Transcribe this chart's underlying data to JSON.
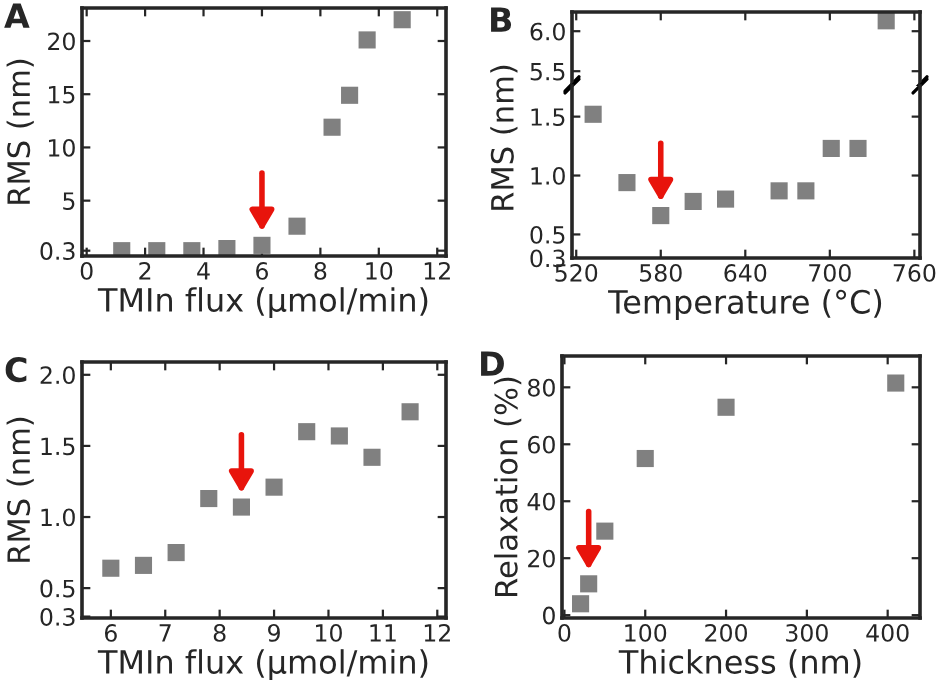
{
  "chart_data": [
    {
      "type": "scatter",
      "xlabel": "TMIn flux (μmol/min)",
      "ylabel": "RMS (nm)",
      "annotations": [
        "A"
      ],
      "marker": "square",
      "grid": false,
      "legend": false,
      "x": [
        1.2,
        2.4,
        3.6,
        4.8,
        6.0,
        7.2,
        8.4,
        9.0,
        9.6,
        10.8
      ],
      "series": [
        {
          "color": "#808080",
          "values": [
            0.3,
            0.3,
            0.3,
            0.5,
            0.8,
            2.6,
            11.9,
            14.9,
            20.1,
            22.0
          ]
        }
      ],
      "xlim": [
        -0.16,
        12.3
      ],
      "xticks": [
        0,
        2,
        4,
        6,
        8,
        10,
        12
      ],
      "ylim": [
        -0.2,
        23.1
      ],
      "yticks": [
        0.3,
        5,
        10,
        15,
        20
      ]
    },
    {
      "type": "scatter",
      "ylabel": "RMS (nm)",
      "annotations": [
        "B"
      ],
      "marker": "square",
      "grid": false,
      "legend": false,
      "tick_labels": "y",
      "x": [
        740
      ],
      "series": [
        {
          "color": "#808080",
          "values": [
            6.13
          ]
        }
      ],
      "xlim": [
        517,
        764
      ],
      "xticks": [
        520,
        580,
        640,
        700,
        760
      ],
      "ylim": [
        5.34,
        6.24
      ],
      "yticks": [
        5.5,
        {
          "value": 6,
          "label": "6.0"
        }
      ]
    },
    {
      "type": "scatter",
      "xlabel": "Temperature (°C)",
      "marker": "square",
      "grid": false,
      "legend": false,
      "x": [
        532,
        556,
        580,
        603,
        626,
        664,
        683,
        701,
        720
      ],
      "series": [
        {
          "color": "#808080",
          "values": [
            1.52,
            0.94,
            0.66,
            0.78,
            0.8,
            0.87,
            0.87,
            1.23,
            1.23
          ]
        }
      ],
      "xlim": [
        517,
        764
      ],
      "xticks": [
        520,
        580,
        640,
        700,
        760
      ],
      "ylim": [
        0.3,
        1.76
      ],
      "yticks": [
        0.3,
        0.5,
        {
          "value": 1,
          "label": "1.0"
        },
        1.5
      ]
    },
    {
      "type": "scatter",
      "xlabel": "TMIn flux (μmol/min)",
      "ylabel": "RMS (nm)",
      "annotations": [
        "C"
      ],
      "marker": "square",
      "grid": false,
      "legend": false,
      "x": [
        6.0,
        6.6,
        7.2,
        7.8,
        8.4,
        9.0,
        9.6,
        10.2,
        10.8,
        11.5
      ],
      "series": [
        {
          "color": "#808080",
          "values": [
            0.64,
            0.66,
            0.75,
            1.13,
            1.07,
            1.21,
            1.6,
            1.57,
            1.42,
            1.74
          ]
        }
      ],
      "xlim": [
        5.47,
        12.16
      ],
      "xticks": [
        6,
        7,
        8,
        9,
        10,
        11,
        12
      ],
      "ylim": [
        0.29,
        2.09
      ],
      "yticks": [
        0.3,
        0.5,
        {
          "value": 1,
          "label": "1.0"
        },
        1.5,
        {
          "value": 2,
          "label": "2.0"
        }
      ]
    },
    {
      "type": "scatter",
      "xlabel": "Thickness (nm)",
      "ylabel": "Relaxation (%)",
      "annotations": [
        "D"
      ],
      "marker": "square",
      "grid": false,
      "legend": false,
      "x": [
        20,
        30,
        50,
        100,
        200,
        410
      ],
      "series": [
        {
          "color": "#808080",
          "values": [
            4,
            11,
            29.5,
            55,
            73,
            81.5
          ]
        }
      ],
      "xlim": [
        -3,
        440
      ],
      "xticks": [
        0,
        100,
        200,
        300,
        400
      ],
      "ylim": [
        -1,
        91
      ],
      "yticks": [
        0,
        20,
        40,
        60,
        80
      ]
    }
  ]
}
